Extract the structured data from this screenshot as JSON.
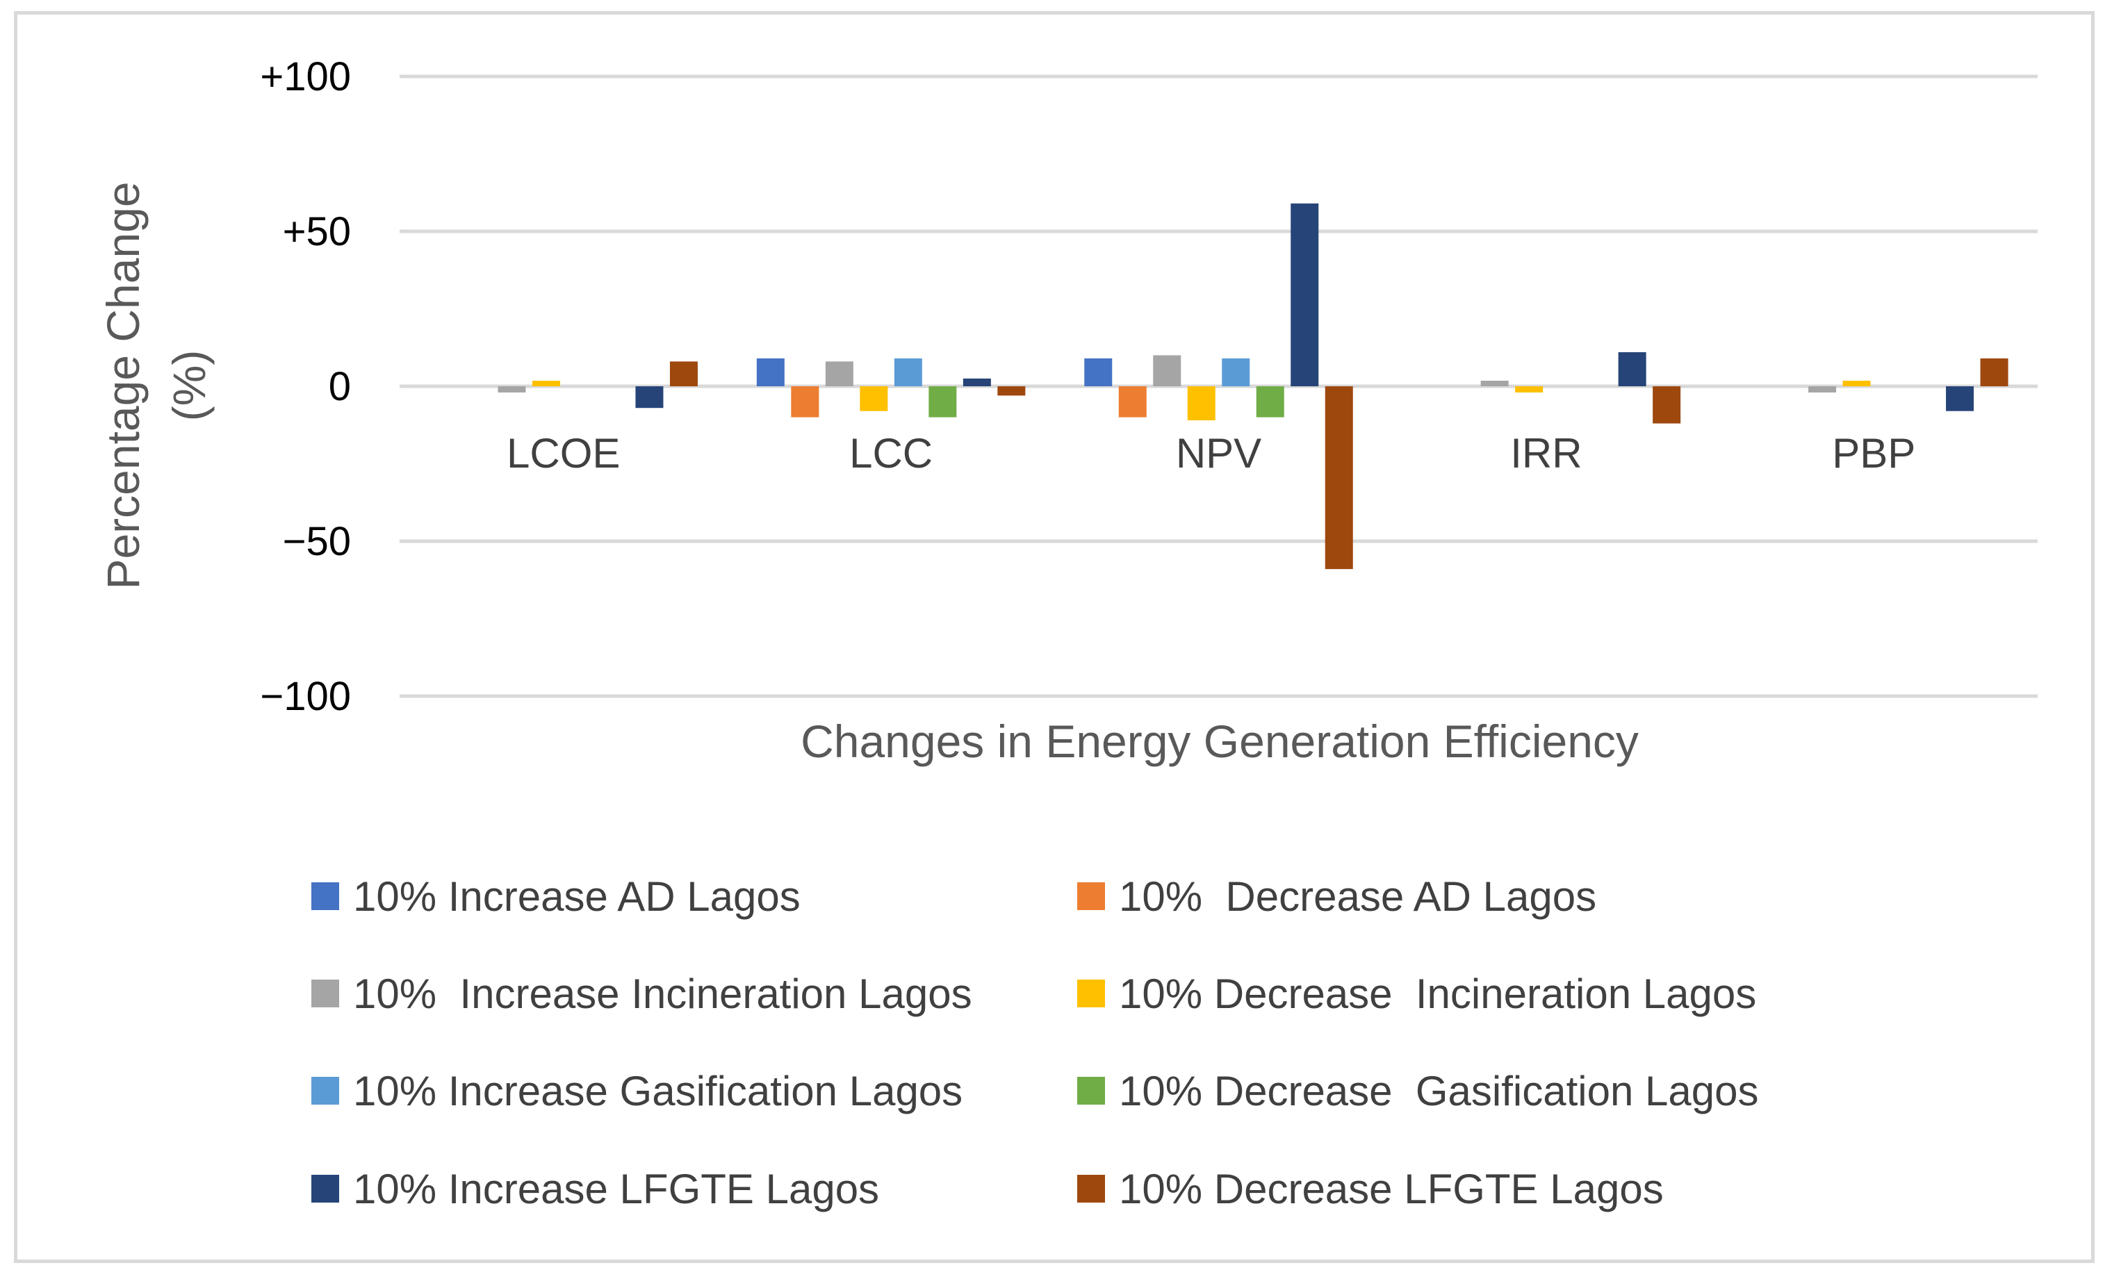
{
  "chart_data": {
    "type": "bar",
    "title": "",
    "xlabel": "Changes in Energy Generation Efficiency",
    "ylabel": [
      "Percentage Change",
      "(%)"
    ],
    "ylim": [
      -100,
      100
    ],
    "yticks": [
      100,
      50,
      0,
      -50,
      -100
    ],
    "ytick_labels": [
      "+100",
      "+50",
      "0",
      "−50",
      "−100"
    ],
    "grid": true,
    "legend_position": "bottom",
    "categories": [
      "LCOE",
      "LCC",
      "NPV",
      "IRR",
      "PBP"
    ],
    "series": [
      {
        "name": "10% Increase AD Lagos",
        "color": "#4472c4",
        "values": [
          0,
          9,
          9,
          0,
          0
        ]
      },
      {
        "name": "10%  Decrease AD Lagos",
        "color": "#ed7d31",
        "values": [
          0,
          -10,
          -10,
          0,
          0
        ]
      },
      {
        "name": "10%  Increase Incineration Lagos",
        "color": "#a5a5a5",
        "values": [
          -2,
          8,
          10,
          1.5,
          -2
        ]
      },
      {
        "name": "10% Decrease  Incineration Lagos",
        "color": "#ffc000",
        "values": [
          1.5,
          -8,
          -11,
          -2,
          1.5
        ]
      },
      {
        "name": "10% Increase Gasification Lagos",
        "color": "#5b9bd5",
        "values": [
          0,
          9,
          9,
          0,
          0
        ]
      },
      {
        "name": "10% Decrease  Gasification Lagos",
        "color": "#70ad47",
        "values": [
          0,
          -10,
          -10,
          0,
          0
        ]
      },
      {
        "name": "10% Increase LFGTE Lagos",
        "color": "#264478",
        "values": [
          -7,
          2.5,
          59,
          11,
          -8
        ]
      },
      {
        "name": "10% Decrease LFGTE Lagos",
        "color": "#9e480e",
        "values": [
          8,
          -3,
          -59,
          -12,
          9
        ]
      }
    ]
  }
}
